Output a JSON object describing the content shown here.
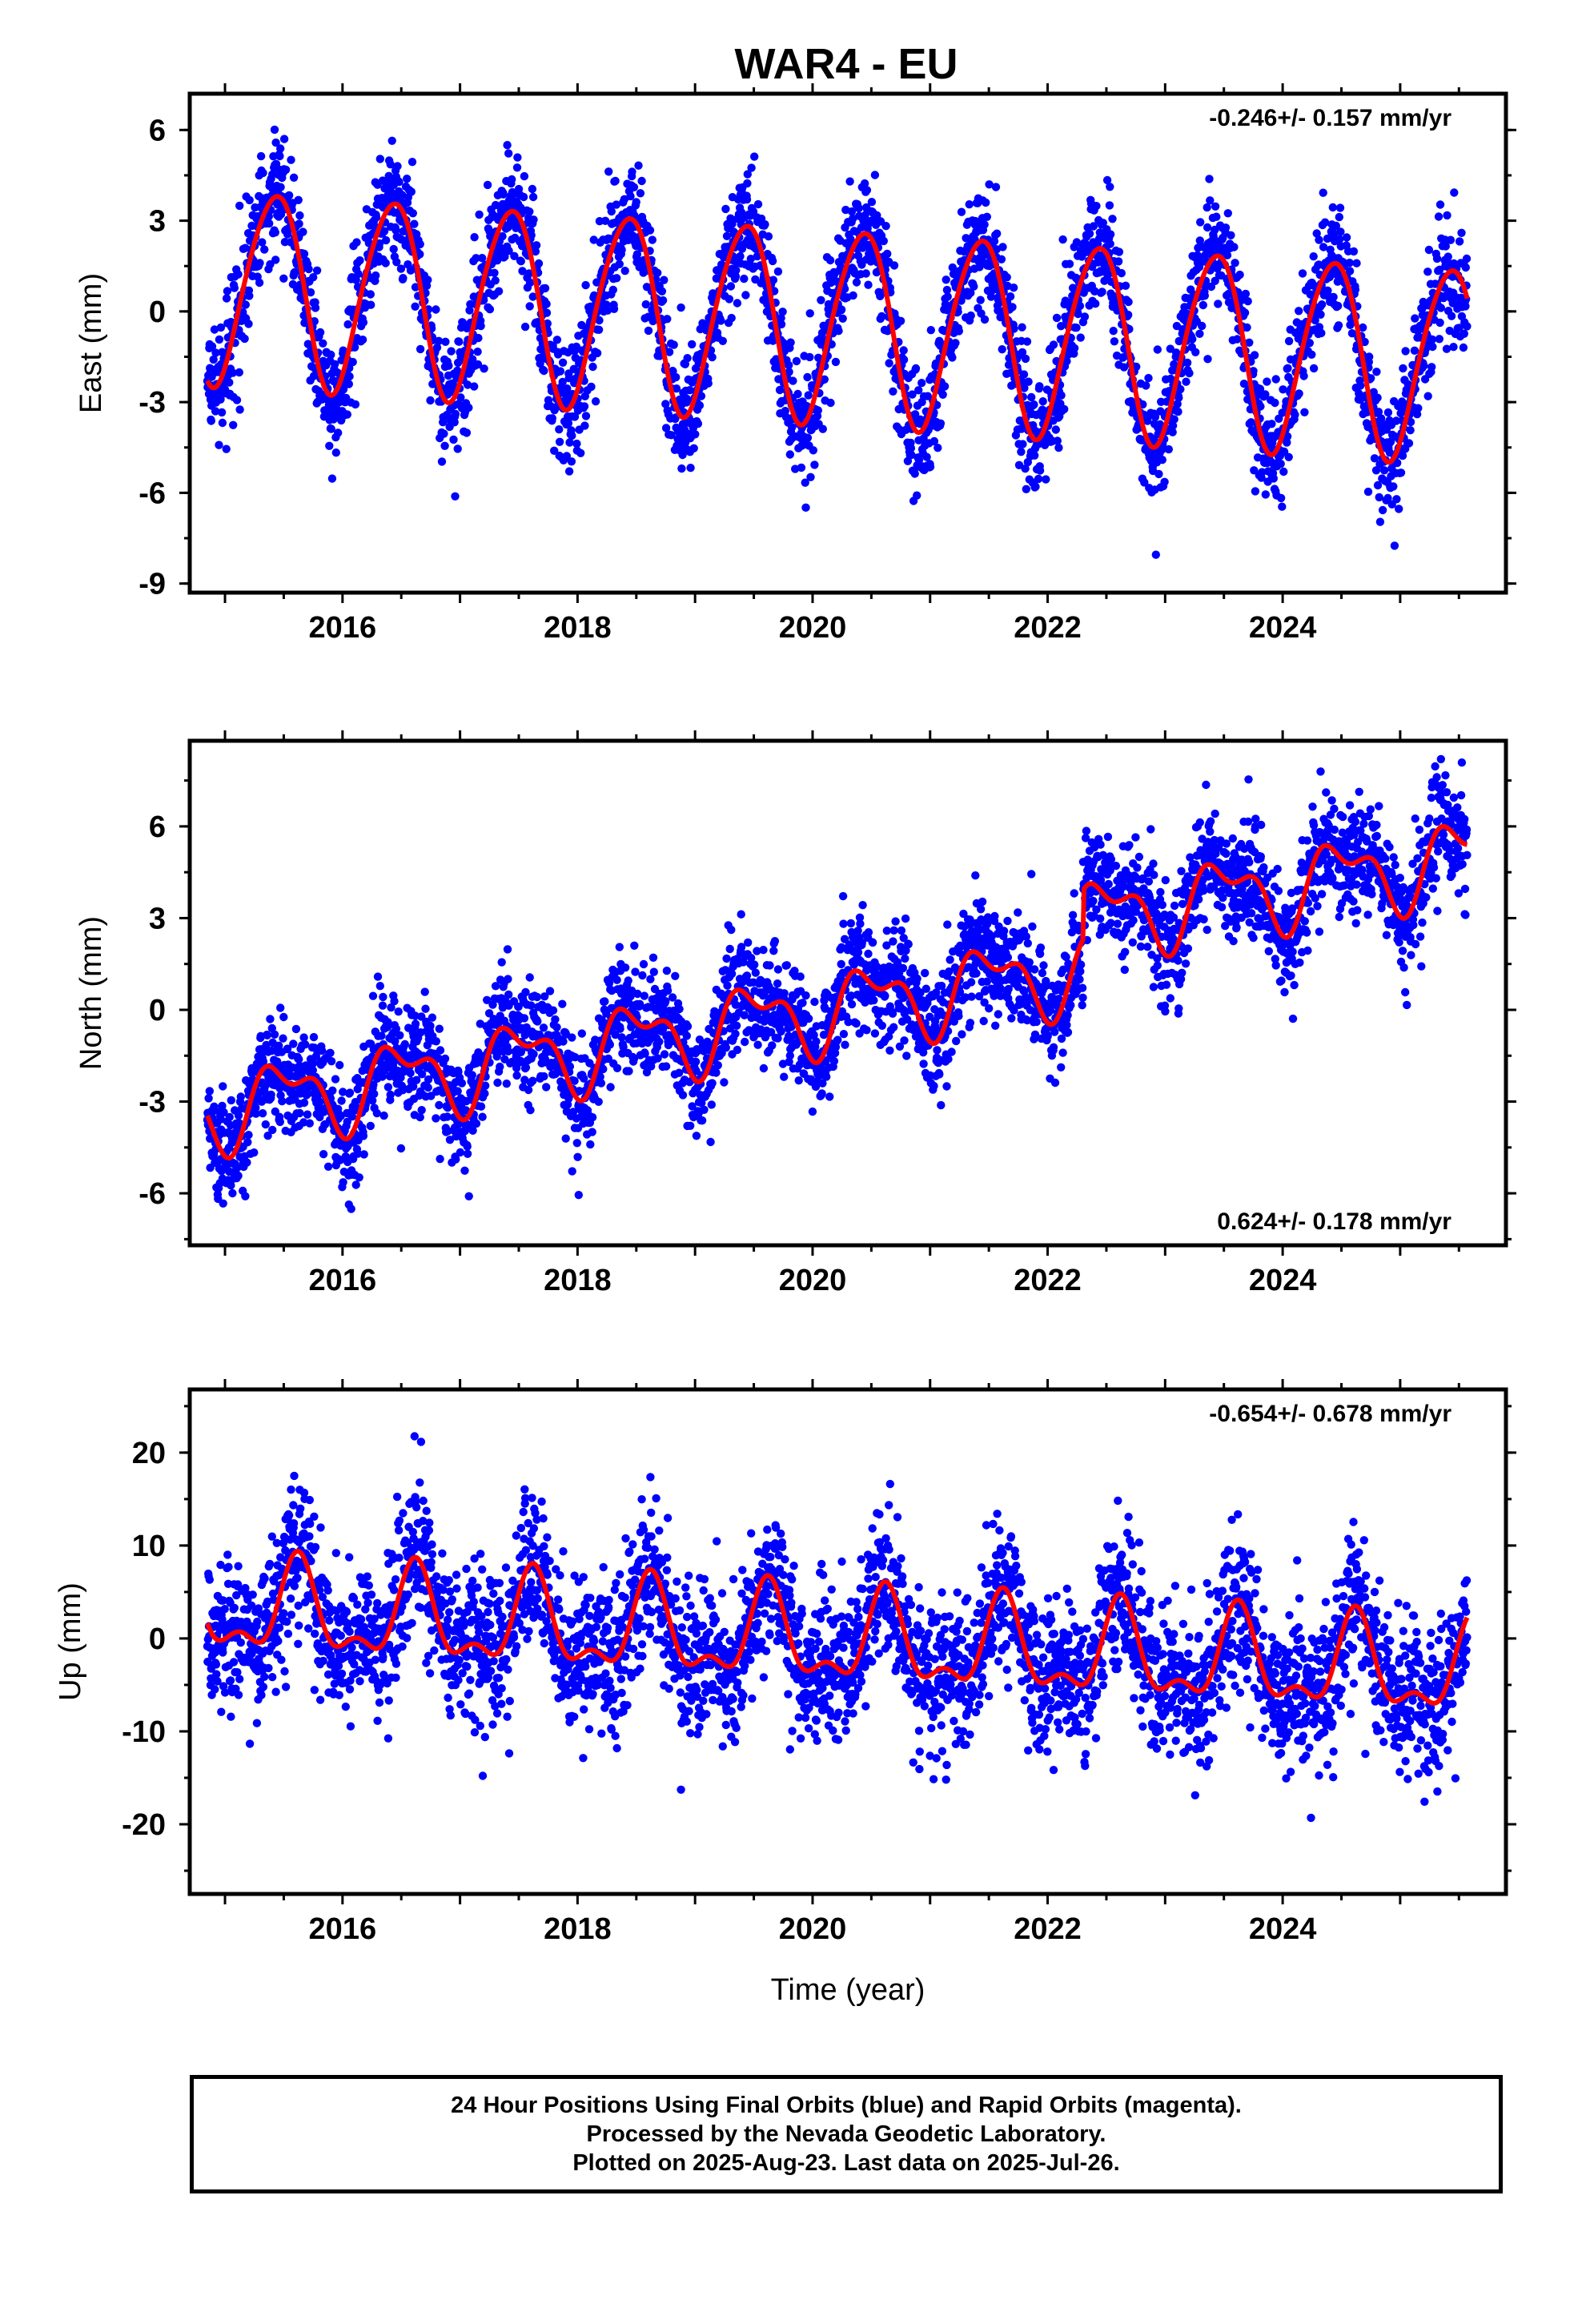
{
  "title": "WAR4 - EU",
  "colors": {
    "points": "#0000ff",
    "fit": "#ff0000",
    "frame": "#000000"
  },
  "footer": {
    "line1": "24 Hour Positions Using Final Orbits (blue) and Rapid Orbits (magenta).",
    "line2": "Processed by the Nevada Geodetic Laboratory.",
    "line3": "Plotted on 2025-Aug-23. Last data on 2025-Jul-26."
  },
  "chart_data": [
    {
      "type": "scatter",
      "panel": "east",
      "title": "WAR4 - EU",
      "xlabel": "",
      "ylabel": "East (mm)",
      "rate_text": "-0.246+/- 0.157 mm/yr",
      "rate_position": "top-right",
      "xlim": [
        2014.7,
        2025.9
      ],
      "ylim": [
        -9.3,
        7.2
      ],
      "xticks": [
        2016,
        2018,
        2020,
        2022,
        2024
      ],
      "xtick_labels": [
        "2016",
        "2018",
        "2020",
        "2022",
        "2024"
      ],
      "yticks": [
        6,
        3,
        0,
        -3,
        -6,
        -9
      ],
      "ytick_labels": [
        "6",
        "3",
        "0",
        "-3",
        "-6",
        "-9"
      ],
      "data_range": [
        2014.85,
        2025.57
      ],
      "model": {
        "offset": 0.9,
        "trend": -0.246,
        "annual_amp": 3.2,
        "peak_doy_frac": 0.42,
        "semi_amp": 0.3,
        "semi_phase": 0.1,
        "scatter": 1.0
      },
      "series": [
        {
          "name": "daily positions",
          "color": "#0000ff"
        },
        {
          "name": "model fit",
          "color": "#ff0000"
        }
      ]
    },
    {
      "type": "scatter",
      "panel": "north",
      "xlabel": "",
      "ylabel": "North (mm)",
      "rate_text": "0.624+/- 0.178 mm/yr",
      "rate_position": "bottom-right",
      "xlim": [
        2014.7,
        2025.9
      ],
      "ylim": [
        -7.7,
        8.8
      ],
      "xticks": [
        2016,
        2018,
        2020,
        2022,
        2024
      ],
      "xtick_labels": [
        "2016",
        "2018",
        "2020",
        "2022",
        "2024"
      ],
      "yticks": [
        6,
        3,
        0,
        -3,
        -6
      ],
      "ytick_labels": [
        "6",
        "3",
        "0",
        "-3",
        "-6"
      ],
      "data_range": [
        2014.85,
        2025.57
      ],
      "model": {
        "offset": -3.3,
        "trend": 0.624,
        "annual_amp": 1.1,
        "peak_doy_frac": 0.5,
        "semi_amp": 0.6,
        "semi_phase": 0.3,
        "scatter": 0.9,
        "step_time": 2022.3,
        "step_size": 1.6
      },
      "series": [
        {
          "name": "daily positions",
          "color": "#0000ff"
        },
        {
          "name": "model fit",
          "color": "#ff0000"
        }
      ]
    },
    {
      "type": "scatter",
      "panel": "up",
      "xlabel": "Time (year)",
      "ylabel": "Up (mm)",
      "rate_text": "-0.654+/- 0.678 mm/yr",
      "rate_position": "top-right",
      "xlim": [
        2014.7,
        2025.9
      ],
      "ylim": [
        -27.5,
        26.8
      ],
      "xticks": [
        2016,
        2018,
        2020,
        2022,
        2024
      ],
      "xtick_labels": [
        "2016",
        "2018",
        "2020",
        "2022",
        "2024"
      ],
      "yticks": [
        20,
        10,
        0,
        -10,
        -20
      ],
      "ytick_labels": [
        "20",
        "10",
        "0",
        "-10",
        "-20"
      ],
      "data_range": [
        2014.85,
        2025.57
      ],
      "model": {
        "offset": 3.2,
        "trend": -0.654,
        "annual_amp": 4.5,
        "peak_doy_frac": 0.62,
        "semi_amp": 2.2,
        "semi_phase": 0.12,
        "scatter": 4.0
      },
      "series": [
        {
          "name": "daily positions",
          "color": "#0000ff"
        },
        {
          "name": "model fit",
          "color": "#ff0000"
        }
      ]
    }
  ]
}
